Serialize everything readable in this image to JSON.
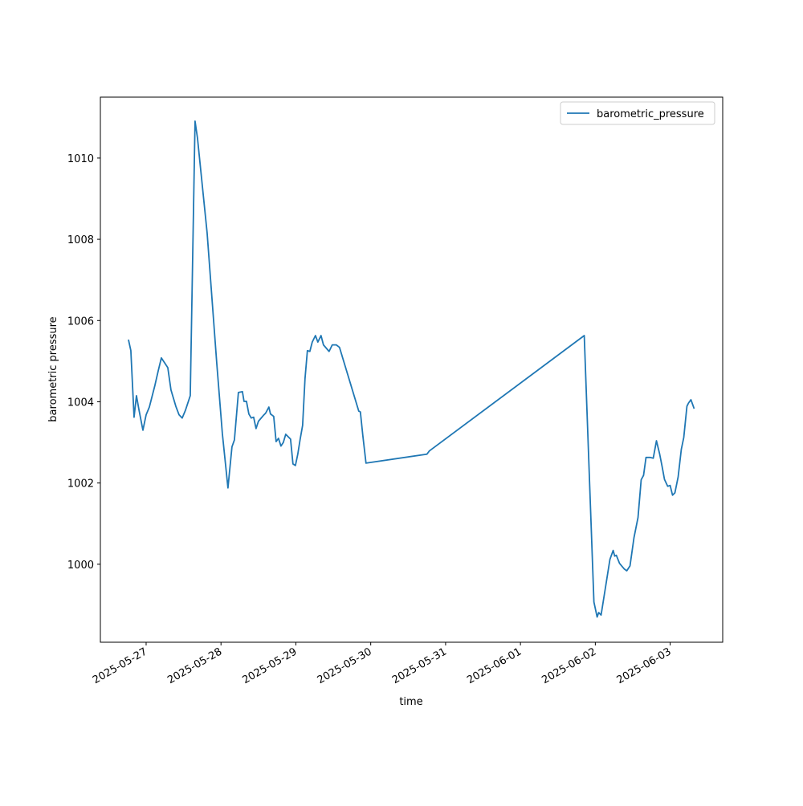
{
  "chart_data": {
    "type": "line",
    "xlabel": "time",
    "ylabel": "barometric pressure",
    "x": [
      "2025-05-26T18:20",
      "2025-05-26T19:06",
      "2025-05-26T20:08",
      "2025-05-26T20:54",
      "2025-05-26T21:41",
      "2025-05-26T22:58",
      "2025-05-27T00:00",
      "2025-05-27T01:02",
      "2025-05-27T02:50",
      "2025-05-27T03:52",
      "2025-05-27T04:53",
      "2025-05-27T05:55",
      "2025-05-27T06:57",
      "2025-05-27T07:58",
      "2025-05-27T09:31",
      "2025-05-27T10:33",
      "2025-05-27T11:34",
      "2025-05-27T12:36",
      "2025-05-27T14:09",
      "2025-05-27T15:41",
      "2025-05-27T16:28",
      "2025-05-27T19:33",
      "2025-05-27T22:38",
      "2025-05-28T00:26",
      "2025-05-28T02:14",
      "2025-05-28T03:31",
      "2025-05-28T04:18",
      "2025-05-28T05:35",
      "2025-05-28T06:52",
      "2025-05-28T07:23",
      "2025-05-28T08:10",
      "2025-05-28T08:56",
      "2025-05-28T09:42",
      "2025-05-28T10:28",
      "2025-05-28T11:14",
      "2025-05-28T12:00",
      "2025-05-28T13:33",
      "2025-05-28T14:19",
      "2025-05-28T15:21",
      "2025-05-28T15:52",
      "2025-05-28T16:54",
      "2025-05-28T17:40",
      "2025-05-28T18:26",
      "2025-05-28T19:13",
      "2025-05-28T19:59",
      "2025-05-28T20:45",
      "2025-05-28T22:18",
      "2025-05-28T23:04",
      "2025-05-28T23:51",
      "2025-05-29T00:37",
      "2025-05-29T01:23",
      "2025-05-29T02:10",
      "2025-05-29T02:56",
      "2025-05-29T03:42",
      "2025-05-29T04:29",
      "2025-05-29T05:15",
      "2025-05-29T06:17",
      "2025-05-29T07:03",
      "2025-05-29T08:04",
      "2025-05-29T08:51",
      "2025-05-29T10:39",
      "2025-05-29T11:40",
      "2025-05-29T12:58",
      "2025-05-29T13:59",
      "2025-05-29T20:10",
      "2025-05-29T20:41",
      "2025-05-29T21:27",
      "2025-05-29T22:29",
      "2025-05-30T18:01",
      "2025-05-30T18:48",
      "2025-06-01T20:27",
      "2025-06-01T23:33",
      "2025-06-02T00:35",
      "2025-06-02T01:05",
      "2025-06-02T01:51",
      "2025-06-02T04:41",
      "2025-06-02T05:43",
      "2025-06-02T06:13",
      "2025-06-02T06:44",
      "2025-06-02T07:46",
      "2025-06-02T09:19",
      "2025-06-02T10:05",
      "2025-06-02T11:07",
      "2025-06-02T12:23",
      "2025-06-02T13:41",
      "2025-06-02T14:42",
      "2025-06-02T15:28",
      "2025-06-02T16:15",
      "2025-06-02T17:32",
      "2025-06-02T18:34",
      "2025-06-02T19:36",
      "2025-06-02T20:38",
      "2025-06-02T21:24",
      "2025-06-02T22:10",
      "2025-06-02T23:12",
      "2025-06-02T23:59",
      "2025-06-03T00:45",
      "2025-06-03T01:31",
      "2025-06-03T02:33",
      "2025-06-03T03:34",
      "2025-06-03T04:21",
      "2025-06-03T05:22",
      "2025-06-03T05:53",
      "2025-06-03T06:39",
      "2025-06-03T07:41"
    ],
    "series": [
      {
        "name": "barometric_pressure",
        "color": "#1f77b4",
        "values": [
          1005.53,
          1005.26,
          1003.62,
          1004.15,
          1003.81,
          1003.3,
          1003.68,
          1003.87,
          1004.41,
          1004.76,
          1005.08,
          1004.96,
          1004.84,
          1004.29,
          1003.89,
          1003.68,
          1003.6,
          1003.79,
          1004.15,
          1010.91,
          1010.49,
          1008.16,
          1004.96,
          1003.22,
          1001.88,
          1002.89,
          1003.06,
          1004.23,
          1004.25,
          1004.01,
          1004.01,
          1003.7,
          1003.6,
          1003.62,
          1003.34,
          1003.52,
          1003.66,
          1003.72,
          1003.87,
          1003.7,
          1003.64,
          1003.02,
          1003.1,
          1002.91,
          1003.0,
          1003.2,
          1003.08,
          1002.47,
          1002.43,
          1002.71,
          1003.08,
          1003.42,
          1004.57,
          1005.26,
          1005.24,
          1005.47,
          1005.63,
          1005.47,
          1005.63,
          1005.4,
          1005.24,
          1005.4,
          1005.4,
          1005.34,
          1003.77,
          1003.75,
          1003.18,
          1002.49,
          1002.71,
          1002.79,
          1005.63,
          999.07,
          998.7,
          998.81,
          998.75,
          1000.12,
          1000.34,
          1000.2,
          1000.22,
          1000.02,
          999.88,
          999.84,
          999.96,
          1000.65,
          1001.15,
          1002.08,
          1002.19,
          1002.63,
          1002.63,
          1002.61,
          1003.04,
          1002.71,
          1002.41,
          1002.09,
          1001.92,
          1001.94,
          1001.7,
          1001.76,
          1002.15,
          1002.83,
          1003.12,
          1003.89,
          1003.97,
          1004.05,
          1003.83
        ]
      }
    ],
    "xlim": [
      "2025-05-26T09:20",
      "2025-06-03T16:50"
    ],
    "xticks": [
      "2025-05-27",
      "2025-05-28",
      "2025-05-29",
      "2025-05-30",
      "2025-05-31",
      "2025-06-01",
      "2025-06-02",
      "2025-06-03"
    ],
    "ylim": [
      998.08,
      1011.5
    ],
    "yticks": [
      1000,
      1002,
      1004,
      1006,
      1008,
      1010
    ],
    "legend": "upper right"
  }
}
